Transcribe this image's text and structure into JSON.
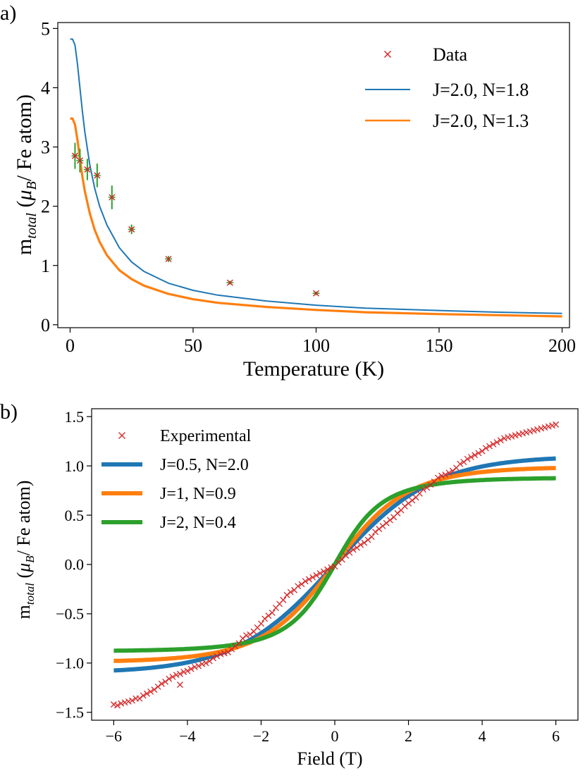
{
  "panels": {
    "a": {
      "label": "a)"
    },
    "b": {
      "label": "b)"
    }
  },
  "chart_data": [
    {
      "type": "line",
      "panel": "a",
      "title": "",
      "xlabel": "Temperature (K)",
      "ylabel_main": "m",
      "ylabel_sub": "total",
      "ylabel_open": " (",
      "ylabel_mu": "μ",
      "ylabel_mu_sub": "B",
      "ylabel_tail": "/ Fe atom)",
      "xlim": [
        -5,
        203
      ],
      "ylim": [
        -0.05,
        5.1
      ],
      "xticks": [
        0,
        50,
        100,
        150,
        200
      ],
      "xtick_labels": [
        "0",
        "50",
        "100",
        "150",
        "200"
      ],
      "yticks": [
        0,
        1,
        2,
        3,
        4,
        5
      ],
      "ytick_labels": [
        "0",
        "1",
        "2",
        "3",
        "4",
        "5"
      ],
      "grid": false,
      "legend_position": "top-right",
      "data_points": {
        "name": "Data",
        "marker": "x",
        "color": "#d62728",
        "errorbar_color": "#2ca02c",
        "x": [
          2,
          4,
          7,
          11,
          17,
          25,
          40,
          65,
          100
        ],
        "y": [
          2.85,
          2.77,
          2.62,
          2.52,
          2.15,
          1.61,
          1.11,
          0.71,
          0.53
        ],
        "yerr": [
          0.22,
          0.2,
          0.18,
          0.2,
          0.2,
          0.08,
          0.05,
          0.03,
          0.03
        ]
      },
      "series": [
        {
          "name": "J=2.0, N=1.8",
          "color": "#1f77b4",
          "x": [
            0,
            1,
            2,
            3,
            4,
            5,
            6,
            8,
            10,
            12,
            15,
            20,
            25,
            30,
            40,
            50,
            60,
            80,
            100,
            120,
            150,
            175,
            200
          ],
          "y": [
            4.82,
            4.82,
            4.72,
            4.4,
            4.0,
            3.6,
            3.25,
            2.7,
            2.3,
            2.0,
            1.68,
            1.3,
            1.06,
            0.9,
            0.7,
            0.58,
            0.5,
            0.4,
            0.33,
            0.28,
            0.24,
            0.21,
            0.19
          ]
        },
        {
          "name": "J=2.0, N=1.3",
          "color": "#ff7f0e",
          "x": [
            0,
            1,
            2,
            3,
            4,
            5,
            6,
            8,
            10,
            12,
            15,
            20,
            25,
            30,
            40,
            50,
            60,
            80,
            100,
            120,
            150,
            175,
            200
          ],
          "y": [
            3.48,
            3.48,
            3.38,
            3.12,
            2.8,
            2.5,
            2.25,
            1.88,
            1.6,
            1.4,
            1.17,
            0.92,
            0.77,
            0.66,
            0.52,
            0.43,
            0.37,
            0.3,
            0.25,
            0.21,
            0.18,
            0.16,
            0.14
          ]
        }
      ]
    },
    {
      "type": "line",
      "panel": "b",
      "title": "",
      "xlabel": "Field (T)",
      "ylabel_main": "m",
      "ylabel_sub": "total",
      "ylabel_open": " (",
      "ylabel_mu": "μ",
      "ylabel_mu_sub": "B",
      "ylabel_tail": "/ Fe atom)",
      "xlim": [
        -6.6,
        6.6
      ],
      "ylim": [
        -1.58,
        1.58
      ],
      "xticks": [
        -6,
        -4,
        -2,
        0,
        2,
        4,
        6
      ],
      "xtick_labels": [
        "−6",
        "−4",
        "−2",
        "0",
        "2",
        "4",
        "6"
      ],
      "yticks": [
        -1.5,
        -1.0,
        -0.5,
        0.0,
        0.5,
        1.0,
        1.5
      ],
      "ytick_labels": [
        "−1.5",
        "−1.0",
        "−0.5",
        "0.0",
        "0.5",
        "1.0",
        "1.5"
      ],
      "grid": false,
      "legend_position": "top-left",
      "data_points": {
        "name": "Experimental",
        "marker": "x",
        "color": "#d62728",
        "x": [
          -6.0,
          -5.9,
          -5.8,
          -5.7,
          -5.6,
          -5.5,
          -5.4,
          -5.3,
          -5.2,
          -5.1,
          -5.0,
          -4.9,
          -4.8,
          -4.7,
          -4.6,
          -4.5,
          -4.4,
          -4.3,
          -4.2,
          -4.1,
          -4.0,
          -3.9,
          -3.8,
          -3.7,
          -3.6,
          -3.5,
          -3.4,
          -3.3,
          -3.2,
          -3.1,
          -3.0,
          -2.9,
          -2.8,
          -2.7,
          -2.6,
          -2.5,
          -2.4,
          -2.3,
          -2.2,
          -2.1,
          -2.0,
          -1.9,
          -1.8,
          -1.7,
          -1.6,
          -1.5,
          -1.4,
          -1.3,
          -1.2,
          -1.1,
          -1.0,
          -0.9,
          -0.8,
          -0.7,
          -0.6,
          -0.5,
          -0.4,
          -0.3,
          -0.2,
          -0.1,
          0.0,
          0.1,
          0.2,
          0.3,
          0.4,
          0.5,
          0.6,
          0.7,
          0.8,
          0.9,
          1.0,
          1.1,
          1.2,
          1.3,
          1.4,
          1.5,
          1.6,
          1.7,
          1.8,
          1.9,
          2.0,
          2.1,
          2.2,
          2.3,
          2.4,
          2.5,
          2.6,
          2.7,
          2.8,
          2.9,
          3.0,
          3.1,
          3.2,
          3.3,
          3.4,
          3.5,
          3.6,
          3.7,
          3.8,
          3.9,
          4.0,
          4.1,
          4.2,
          4.3,
          4.4,
          4.5,
          4.6,
          4.7,
          4.8,
          4.9,
          5.0,
          5.1,
          5.2,
          5.3,
          5.4,
          5.5,
          5.6,
          5.7,
          5.8,
          5.9,
          6.0,
          -4.2
        ],
        "y": [
          -1.42,
          -1.43,
          -1.41,
          -1.4,
          -1.39,
          -1.38,
          -1.36,
          -1.36,
          -1.33,
          -1.31,
          -1.29,
          -1.27,
          -1.24,
          -1.21,
          -1.19,
          -1.16,
          -1.14,
          -1.12,
          -1.11,
          -1.09,
          -1.08,
          -1.06,
          -1.04,
          -1.03,
          -1.01,
          -1.0,
          -0.98,
          -0.95,
          -0.93,
          -0.91,
          -0.9,
          -0.89,
          -0.86,
          -0.83,
          -0.8,
          -0.75,
          -0.72,
          -0.71,
          -0.68,
          -0.64,
          -0.6,
          -0.55,
          -0.52,
          -0.49,
          -0.44,
          -0.4,
          -0.36,
          -0.31,
          -0.28,
          -0.26,
          -0.22,
          -0.2,
          -0.17,
          -0.15,
          -0.13,
          -0.11,
          -0.09,
          -0.07,
          -0.05,
          -0.03,
          -0.02,
          0.02,
          0.05,
          0.09,
          0.12,
          0.15,
          0.17,
          0.2,
          0.22,
          0.25,
          0.28,
          0.33,
          0.36,
          0.39,
          0.42,
          0.45,
          0.48,
          0.52,
          0.55,
          0.59,
          0.62,
          0.65,
          0.68,
          0.72,
          0.76,
          0.78,
          0.81,
          0.84,
          0.88,
          0.9,
          0.91,
          0.93,
          0.95,
          0.98,
          1.02,
          1.04,
          1.07,
          1.09,
          1.11,
          1.13,
          1.15,
          1.18,
          1.2,
          1.22,
          1.24,
          1.26,
          1.28,
          1.29,
          1.3,
          1.31,
          1.32,
          1.33,
          1.34,
          1.35,
          1.36,
          1.37,
          1.38,
          1.39,
          1.4,
          1.41,
          1.42,
          -1.22
        ]
      },
      "series": [
        {
          "name": "J=0.5, N=2.0",
          "color": "#1f77b4",
          "func": "brillouin",
          "J": 0.5,
          "N": 2.0
        },
        {
          "name": "J=1, N=0.9",
          "color": "#ff7f0e",
          "func": "brillouin",
          "J": 1,
          "N": 0.9
        },
        {
          "name": "J=2, N=0.4",
          "color": "#2ca02c",
          "func": "brillouin",
          "J": 2,
          "N": 0.4
        }
      ]
    }
  ]
}
